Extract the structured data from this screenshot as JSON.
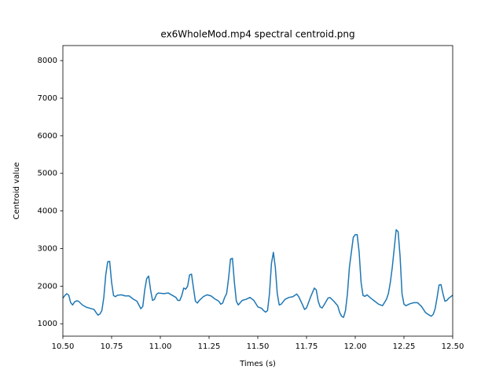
{
  "chart_data": {
    "type": "line",
    "title": "ex6WholeMod.mp4 spectral centroid.png",
    "xlabel": "Times (s)",
    "ylabel": "Centroid value",
    "xlim": [
      10.5,
      12.5
    ],
    "ylim": [
      670,
      8400
    ],
    "xticks": [
      {
        "value": 10.5,
        "label": "10.50"
      },
      {
        "value": 10.75,
        "label": "10.75"
      },
      {
        "value": 11,
        "label": "11.00"
      },
      {
        "value": 11.25,
        "label": "11.25"
      },
      {
        "value": 11.5,
        "label": "11.50"
      },
      {
        "value": 11.75,
        "label": "11.75"
      },
      {
        "value": 12,
        "label": "12.00"
      },
      {
        "value": 12.25,
        "label": "12.25"
      },
      {
        "value": 12.5,
        "label": "12.50"
      }
    ],
    "yticks": [
      1000,
      2000,
      3000,
      4000,
      5000,
      6000,
      7000,
      8000
    ],
    "grid": false,
    "x": [
      10.5,
      10.51,
      10.52,
      10.53,
      10.54,
      10.55,
      10.56,
      10.57,
      10.58,
      10.6,
      10.62,
      10.64,
      10.66,
      10.67,
      10.68,
      10.69,
      10.7,
      10.71,
      10.72,
      10.73,
      10.74,
      10.75,
      10.76,
      10.77,
      10.78,
      10.8,
      10.82,
      10.84,
      10.86,
      10.88,
      10.89,
      10.9,
      10.91,
      10.92,
      10.93,
      10.94,
      10.95,
      10.96,
      10.97,
      10.98,
      10.99,
      11.0,
      11.02,
      11.04,
      11.06,
      11.08,
      11.09,
      11.1,
      11.11,
      11.12,
      11.13,
      11.14,
      11.15,
      11.16,
      11.17,
      11.18,
      11.19,
      11.2,
      11.22,
      11.24,
      11.26,
      11.28,
      11.3,
      11.31,
      11.32,
      11.33,
      11.34,
      11.35,
      11.36,
      11.37,
      11.38,
      11.39,
      11.4,
      11.41,
      11.42,
      11.44,
      11.46,
      11.48,
      11.5,
      11.52,
      11.53,
      11.54,
      11.55,
      11.56,
      11.57,
      11.58,
      11.59,
      11.6,
      11.61,
      11.62,
      11.64,
      11.66,
      11.68,
      11.7,
      11.71,
      11.73,
      11.74,
      11.75,
      11.77,
      11.79,
      11.8,
      11.81,
      11.82,
      11.83,
      11.84,
      11.86,
      11.87,
      11.89,
      11.91,
      11.92,
      11.93,
      11.94,
      11.95,
      11.96,
      11.97,
      11.99,
      12.0,
      12.01,
      12.02,
      12.03,
      12.04,
      12.05,
      12.06,
      12.08,
      12.1,
      12.12,
      12.14,
      12.16,
      12.17,
      12.18,
      12.19,
      12.2,
      12.21,
      12.22,
      12.23,
      12.24,
      12.25,
      12.26,
      12.28,
      12.3,
      12.32,
      12.34,
      12.36,
      12.38,
      12.39,
      12.4,
      12.41,
      12.42,
      12.43,
      12.44,
      12.45,
      12.46,
      12.47,
      12.48,
      12.5
    ],
    "series": [
      {
        "color": "#1f77b4",
        "values": [
          1680,
          1750,
          1800,
          1760,
          1560,
          1500,
          1580,
          1610,
          1600,
          1500,
          1440,
          1410,
          1380,
          1300,
          1230,
          1260,
          1350,
          1700,
          2300,
          2650,
          2660,
          2100,
          1750,
          1720,
          1760,
          1770,
          1740,
          1740,
          1660,
          1600,
          1500,
          1400,
          1460,
          1900,
          2200,
          2270,
          1900,
          1620,
          1650,
          1780,
          1820,
          1810,
          1800,
          1820,
          1760,
          1700,
          1620,
          1620,
          1750,
          1950,
          1920,
          2000,
          2300,
          2320,
          1950,
          1600,
          1550,
          1620,
          1720,
          1770,
          1740,
          1660,
          1600,
          1520,
          1550,
          1700,
          1800,
          2200,
          2720,
          2740,
          2100,
          1600,
          1500,
          1560,
          1620,
          1650,
          1700,
          1620,
          1450,
          1410,
          1350,
          1310,
          1350,
          1800,
          2600,
          2900,
          2500,
          1800,
          1500,
          1520,
          1650,
          1700,
          1720,
          1790,
          1720,
          1500,
          1380,
          1420,
          1700,
          1950,
          1900,
          1600,
          1450,
          1420,
          1500,
          1680,
          1700,
          1600,
          1480,
          1300,
          1200,
          1170,
          1350,
          1800,
          2500,
          3300,
          3370,
          3370,
          2900,
          2100,
          1750,
          1730,
          1770,
          1680,
          1600,
          1520,
          1480,
          1650,
          1800,
          2100,
          2500,
          3000,
          3500,
          3450,
          2800,
          1800,
          1520,
          1480,
          1530,
          1560,
          1560,
          1460,
          1300,
          1230,
          1200,
          1250,
          1400,
          1700,
          2030,
          2040,
          1800,
          1600,
          1620,
          1680,
          1760
        ]
      }
    ]
  }
}
